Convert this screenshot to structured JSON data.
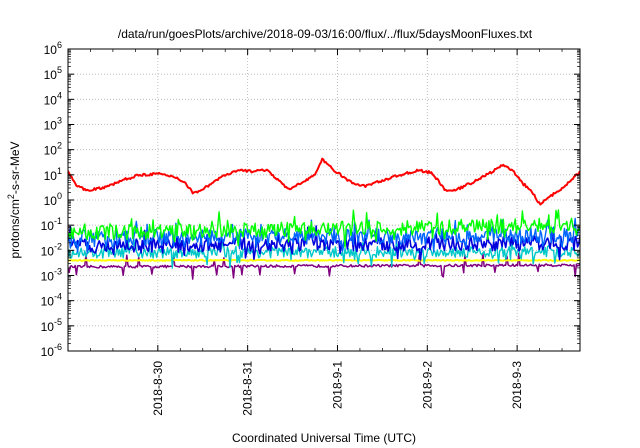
{
  "chart_data": {
    "type": "line",
    "title": "/data/run/goesPlots/archive/2018-09-03/16:00/flux/../flux/5daysMoonFluxes.txt",
    "xlabel": "Coordinated Universal Time (UTC)",
    "ylabel": {
      "base": "protons/cm",
      "sup": "2",
      "rest": "-s-sr-MeV"
    },
    "yscale": "log",
    "ylim_exp": [
      -6,
      6
    ],
    "ytick_base": "10",
    "x_ticks": [
      "2018-8-30",
      "2018-8-31",
      "2018-9-1",
      "2018-9-2",
      "2018-9-3"
    ],
    "xlim_days": [
      -1.0,
      4.7
    ],
    "grid": true,
    "legend": "none",
    "series": [
      {
        "color": "#ff0000",
        "width": 2.0,
        "noise": 0.05,
        "spikes": 0,
        "values": [
          [
            -1.0,
            15
          ],
          [
            -0.9,
            3.5
          ],
          [
            -0.8,
            2.5
          ],
          [
            -0.6,
            3
          ],
          [
            -0.4,
            6
          ],
          [
            -0.2,
            10
          ],
          [
            0.0,
            11
          ],
          [
            0.2,
            8
          ],
          [
            0.3,
            5
          ],
          [
            0.4,
            1.8
          ],
          [
            0.55,
            3.5
          ],
          [
            0.7,
            8
          ],
          [
            0.9,
            15
          ],
          [
            1.05,
            14
          ],
          [
            1.2,
            16
          ],
          [
            1.35,
            6
          ],
          [
            1.45,
            2.5
          ],
          [
            1.6,
            5
          ],
          [
            1.75,
            10
          ],
          [
            1.83,
            40
          ],
          [
            2.0,
            12
          ],
          [
            2.15,
            5
          ],
          [
            2.3,
            3.5
          ],
          [
            2.5,
            6
          ],
          [
            2.7,
            10
          ],
          [
            2.9,
            15
          ],
          [
            3.05,
            12
          ],
          [
            3.2,
            2.5
          ],
          [
            3.3,
            2.3
          ],
          [
            3.5,
            5
          ],
          [
            3.7,
            12
          ],
          [
            3.85,
            25
          ],
          [
            3.95,
            15
          ],
          [
            4.05,
            5
          ],
          [
            4.15,
            2.5
          ],
          [
            4.25,
            0.7
          ],
          [
            4.35,
            1.2
          ],
          [
            4.5,
            3
          ],
          [
            4.7,
            13
          ]
        ]
      },
      {
        "color": "#00ff00",
        "width": 1.4,
        "noise": 0.3,
        "spikes": 0.12,
        "values": [
          [
            -1.0,
            0.05
          ],
          [
            4.7,
            0.1
          ]
        ]
      },
      {
        "color": "#0066ff",
        "width": 1.4,
        "noise": 0.33,
        "spikes": 0.1,
        "values": [
          [
            -1.0,
            0.03
          ],
          [
            4.7,
            0.04
          ]
        ]
      },
      {
        "color": "#0000dd",
        "width": 1.6,
        "noise": 0.3,
        "spikes": 0.1,
        "values": [
          [
            -1.0,
            0.015
          ],
          [
            4.7,
            0.02
          ]
        ]
      },
      {
        "color": "#00c8c8",
        "width": 1.4,
        "noise": 0.22,
        "spikes": 0.1,
        "values": [
          [
            -1.0,
            0.008
          ],
          [
            4.7,
            0.009
          ]
        ]
      },
      {
        "color": "#ffff00",
        "width": 2.0,
        "noise": 0.02,
        "spikes": 0,
        "values": [
          [
            -1.0,
            0.004
          ],
          [
            4.7,
            0.004
          ]
        ]
      },
      {
        "color": "#800080",
        "width": 1.5,
        "noise": 0.05,
        "spikes": 0.06,
        "values": [
          [
            -1.0,
            0.0022
          ],
          [
            4.7,
            0.0026
          ]
        ]
      }
    ]
  }
}
